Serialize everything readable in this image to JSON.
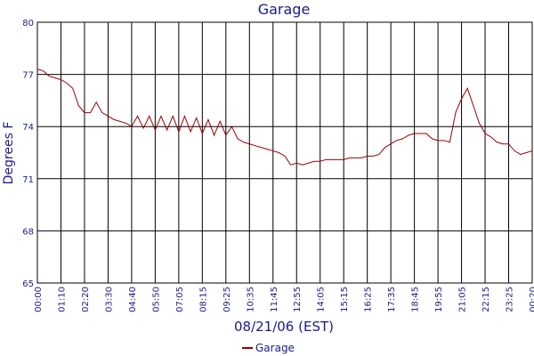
{
  "chart_data": {
    "type": "line",
    "title": "Garage",
    "x_label": "08/21/06 (EST)",
    "y_label": "Degrees F",
    "xlim": [
      0,
      21
    ],
    "xticks": [
      {
        "value": 0,
        "label": "00:00"
      },
      {
        "value": 1,
        "label": "01:10"
      },
      {
        "value": 2,
        "label": "02:20"
      },
      {
        "value": 3,
        "label": "03:30"
      },
      {
        "value": 4,
        "label": "04:40"
      },
      {
        "value": 5,
        "label": "05:50"
      },
      {
        "value": 6,
        "label": "07:05"
      },
      {
        "value": 7,
        "label": "08:15"
      },
      {
        "value": 8,
        "label": "09:25"
      },
      {
        "value": 9,
        "label": "10:35"
      },
      {
        "value": 10,
        "label": "11:45"
      },
      {
        "value": 11,
        "label": "12:55"
      },
      {
        "value": 12,
        "label": "14:05"
      },
      {
        "value": 13,
        "label": "15:15"
      },
      {
        "value": 14,
        "label": "16:25"
      },
      {
        "value": 15,
        "label": "17:35"
      },
      {
        "value": 16,
        "label": "18:45"
      },
      {
        "value": 17,
        "label": "19:55"
      },
      {
        "value": 18,
        "label": "21:05"
      },
      {
        "value": 19,
        "label": "22:15"
      },
      {
        "value": 20,
        "label": "23:25"
      },
      {
        "value": 21,
        "label": "00:20"
      }
    ],
    "ylim": [
      65,
      80
    ],
    "yticks": [
      65,
      68,
      71,
      74,
      77,
      80
    ],
    "grid": true,
    "x": [
      0,
      0.25,
      0.5,
      0.75,
      1,
      1.25,
      1.5,
      1.75,
      2,
      2.25,
      2.5,
      2.75,
      3,
      3.25,
      3.5,
      3.75,
      4,
      4.25,
      4.5,
      4.75,
      5,
      5.25,
      5.5,
      5.75,
      6,
      6.25,
      6.5,
      6.75,
      7,
      7.25,
      7.5,
      7.75,
      8,
      8.25,
      8.5,
      8.75,
      9,
      9.25,
      9.5,
      9.75,
      10,
      10.25,
      10.5,
      10.75,
      11,
      11.25,
      11.5,
      11.75,
      12,
      12.25,
      12.5,
      12.75,
      13,
      13.25,
      13.5,
      13.75,
      14,
      14.25,
      14.5,
      14.75,
      15,
      15.25,
      15.5,
      15.75,
      16,
      16.25,
      16.5,
      16.75,
      17,
      17.25,
      17.5,
      17.75,
      18,
      18.25,
      18.5,
      18.75,
      19,
      19.25,
      19.5,
      19.75,
      20,
      20.25,
      20.5,
      20.75,
      21
    ],
    "series": [
      {
        "name": "Garage",
        "color": "#990000",
        "values": [
          77.3,
          77.2,
          76.9,
          76.8,
          76.7,
          76.5,
          76.2,
          75.2,
          74.8,
          74.8,
          75.4,
          74.8,
          74.6,
          74.4,
          74.3,
          74.2,
          74.0,
          74.6,
          73.9,
          74.6,
          73.8,
          74.6,
          73.8,
          74.6,
          73.7,
          74.6,
          73.7,
          74.5,
          73.6,
          74.4,
          73.5,
          74.3,
          73.5,
          74.0,
          73.3,
          73.1,
          73.0,
          72.9,
          72.8,
          72.7,
          72.6,
          72.5,
          72.3,
          71.8,
          71.9,
          71.8,
          71.9,
          72.0,
          72.0,
          72.1,
          72.1,
          72.1,
          72.1,
          72.2,
          72.2,
          72.2,
          72.3,
          72.3,
          72.4,
          72.8,
          73.0,
          73.2,
          73.3,
          73.5,
          73.6,
          73.6,
          73.6,
          73.3,
          73.2,
          73.2,
          73.1,
          74.8,
          75.6,
          76.2,
          75.2,
          74.2,
          73.6,
          73.4,
          73.1,
          73.0,
          73.0,
          72.6,
          72.4,
          72.5,
          72.6
        ]
      }
    ],
    "legend": "bottom"
  }
}
